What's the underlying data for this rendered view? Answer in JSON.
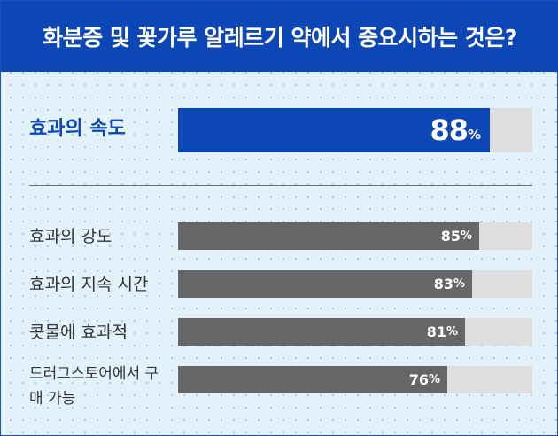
{
  "header": {
    "title": "화분증 및 꽃가루 알레르기 약에서 중요시하는 것은?"
  },
  "colors": {
    "header_bg": "#0d47b5",
    "highlight_bar": "#0d47b5",
    "bar": "#666666",
    "track": "#dedede",
    "background": "#e3f1fb"
  },
  "chart_data": {
    "type": "bar",
    "orientation": "horizontal",
    "title": "화분증 및 꽃가루 알레르기 약에서 중요시하는 것은?",
    "xlabel": "",
    "ylabel": "",
    "xlim": [
      0,
      100
    ],
    "grid": false,
    "unit": "%",
    "categories": [
      "효과의 속도",
      "효과의 강도",
      "효과의 지속 시간",
      "콧물에 효과적",
      "드러그스토어에서 구매 가능"
    ],
    "values": [
      88,
      85,
      83,
      81,
      76
    ],
    "highlighted": "효과의 속도"
  }
}
